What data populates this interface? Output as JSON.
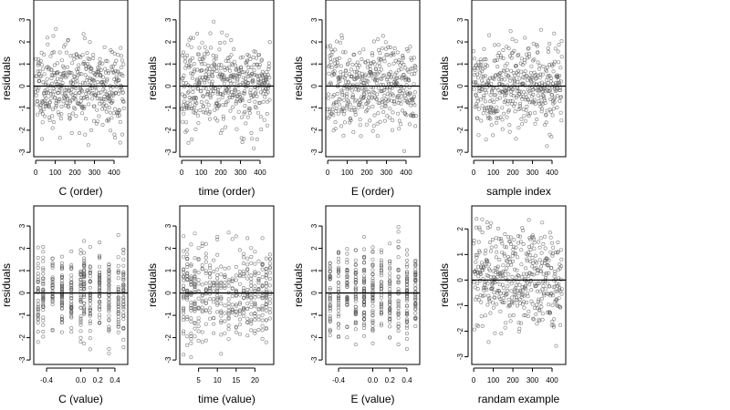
{
  "chart_data": [
    {
      "type": "scatter",
      "xlabel": "C (order)",
      "ylabel": "residuals",
      "xlim": [
        -10,
        470
      ],
      "ylim": [
        -3.2,
        3.9
      ],
      "xticks": [
        0,
        100,
        200,
        300,
        400
      ],
      "xtick_labels": [
        "0",
        "100",
        "200",
        "300",
        "400"
      ],
      "yticks": [
        -3,
        -2,
        -1,
        0,
        1,
        2,
        3
      ],
      "ytick_labels": [
        "-3",
        "-2",
        "-1",
        "0",
        "1",
        "2",
        "3"
      ],
      "hline": 0,
      "points": {
        "n": 450,
        "x_kind": "index",
        "x_range": [
          0,
          450
        ],
        "cluster_values": [],
        "seed": 11,
        "spread": 0.95,
        "y_min": -3.0,
        "y_max": 3.7
      }
    },
    {
      "type": "scatter",
      "xlabel": "time (order)",
      "ylabel": "residuals",
      "xlim": [
        -10,
        470
      ],
      "ylim": [
        -3.2,
        3.9
      ],
      "xticks": [
        0,
        100,
        200,
        300,
        400
      ],
      "xtick_labels": [
        "0",
        "100",
        "200",
        "300",
        "400"
      ],
      "yticks": [
        -3,
        -2,
        -1,
        0,
        1,
        2,
        3
      ],
      "ytick_labels": [
        "-3",
        "-2",
        "-1",
        "0",
        "1",
        "2",
        "3"
      ],
      "hline": 0,
      "points": {
        "n": 450,
        "x_kind": "index",
        "x_range": [
          0,
          450
        ],
        "cluster_values": [],
        "seed": 23,
        "spread": 0.95,
        "y_min": -3.0,
        "y_max": 3.7
      }
    },
    {
      "type": "scatter",
      "xlabel": "E (order)",
      "ylabel": "residuals",
      "xlim": [
        -10,
        470
      ],
      "ylim": [
        -3.2,
        3.9
      ],
      "xticks": [
        0,
        100,
        200,
        300,
        400
      ],
      "xtick_labels": [
        "0",
        "100",
        "200",
        "300",
        "400"
      ],
      "yticks": [
        -3,
        -2,
        -1,
        0,
        1,
        2,
        3
      ],
      "ytick_labels": [
        "-3",
        "-2",
        "-1",
        "0",
        "1",
        "2",
        "3"
      ],
      "hline": 0,
      "points": {
        "n": 450,
        "x_kind": "index",
        "x_range": [
          0,
          450
        ],
        "cluster_values": [],
        "seed": 37,
        "spread": 0.95,
        "y_min": -3.0,
        "y_max": 3.7
      }
    },
    {
      "type": "scatter",
      "xlabel": "sample index",
      "ylabel": "residuals",
      "xlim": [
        -10,
        470
      ],
      "ylim": [
        -3.2,
        3.9
      ],
      "xticks": [
        0,
        100,
        200,
        300,
        400
      ],
      "xtick_labels": [
        "0",
        "100",
        "200",
        "300",
        "400"
      ],
      "yticks": [
        -3,
        -2,
        -1,
        0,
        1,
        2,
        3
      ],
      "ytick_labels": [
        "-3",
        "-2",
        "-1",
        "0",
        "1",
        "2",
        "3"
      ],
      "hline": 0,
      "points": {
        "n": 450,
        "x_kind": "index",
        "x_range": [
          0,
          450
        ],
        "cluster_values": [],
        "seed": 41,
        "spread": 0.95,
        "y_min": -3.0,
        "y_max": 3.7
      }
    },
    {
      "type": "scatter",
      "xlabel": "C (value)",
      "ylabel": "residuals",
      "xlim": [
        -0.55,
        0.55
      ],
      "ylim": [
        -3.2,
        3.9
      ],
      "xticks": [
        -0.4,
        0.0,
        0.2,
        0.4
      ],
      "xtick_labels": [
        "-0.4",
        "0.0",
        "0.2",
        "0.4"
      ],
      "yticks": [
        -3,
        -2,
        -1,
        0,
        1,
        2,
        3
      ],
      "ytick_labels": [
        "-3",
        "-2",
        "-1",
        "0",
        "1",
        "2",
        "3"
      ],
      "hline": 0,
      "points": {
        "n": 450,
        "x_kind": "clustered",
        "x_range": [
          -0.5,
          0.5
        ],
        "cluster_values": [
          -0.5,
          -0.44,
          -0.33,
          -0.22,
          -0.11,
          0.0,
          0.04,
          0.11,
          0.22,
          0.33,
          0.44,
          0.5
        ],
        "seed": 53,
        "spread": 0.95,
        "y_min": -3.0,
        "y_max": 3.7
      }
    },
    {
      "type": "scatter",
      "xlabel": "time (value)",
      "ylabel": "residuals",
      "xlim": [
        0,
        25
      ],
      "ylim": [
        -3.2,
        3.9
      ],
      "xticks": [
        5,
        10,
        15,
        20
      ],
      "xtick_labels": [
        "5",
        "10",
        "15",
        "20"
      ],
      "yticks": [
        -3,
        -2,
        -1,
        0,
        1,
        2,
        3
      ],
      "ytick_labels": [
        "-3",
        "-2",
        "-1",
        "0",
        "1",
        "2",
        "3"
      ],
      "hline": 0,
      "points": {
        "n": 450,
        "x_kind": "clustered",
        "x_range": [
          1,
          24
        ],
        "cluster_values": [
          1,
          2,
          3,
          4,
          5,
          6,
          7,
          8,
          9,
          10,
          11,
          12,
          13,
          14,
          15,
          16,
          17,
          18,
          19,
          20,
          21,
          22,
          23,
          24
        ],
        "seed": 67,
        "spread": 0.95,
        "y_min": -3.0,
        "y_max": 3.7
      }
    },
    {
      "type": "scatter",
      "xlabel": "E (value)",
      "ylabel": "residuals",
      "xlim": [
        -0.55,
        0.55
      ],
      "ylim": [
        -3.2,
        3.9
      ],
      "xticks": [
        -0.4,
        0.0,
        0.2,
        0.4
      ],
      "xtick_labels": [
        "-0.4",
        "0.0",
        "0.2",
        "0.4"
      ],
      "yticks": [
        -3,
        -2,
        -1,
        0,
        1,
        2,
        3
      ],
      "ytick_labels": [
        "-3",
        "-2",
        "-1",
        "0",
        "1",
        "2",
        "3"
      ],
      "hline": 0,
      "points": {
        "n": 450,
        "x_kind": "clustered",
        "x_range": [
          -0.5,
          0.5
        ],
        "cluster_values": [
          -0.5,
          -0.4,
          -0.3,
          -0.2,
          -0.1,
          0.0,
          0.1,
          0.2,
          0.3,
          0.4,
          0.5
        ],
        "seed": 79,
        "spread": 0.95,
        "y_min": -3.0,
        "y_max": 3.7
      }
    },
    {
      "type": "scatter",
      "xlabel": "randam example",
      "ylabel": "residuals",
      "xlim": [
        -10,
        470
      ],
      "ylim": [
        -3.3,
        2.9
      ],
      "xticks": [
        0,
        100,
        200,
        300,
        400
      ],
      "xtick_labels": [
        "0",
        "100",
        "200",
        "300",
        "400"
      ],
      "yticks": [
        -3,
        -2,
        -1,
        0,
        1,
        2
      ],
      "ytick_labels": [
        "-3",
        "-2",
        "-1",
        "0",
        "1",
        "2"
      ],
      "hline": 0,
      "points": {
        "n": 450,
        "x_kind": "index",
        "x_range": [
          0,
          450
        ],
        "cluster_values": [],
        "seed": 97,
        "spread": 1.0,
        "y_min": -3.1,
        "y_max": 2.5
      }
    }
  ]
}
